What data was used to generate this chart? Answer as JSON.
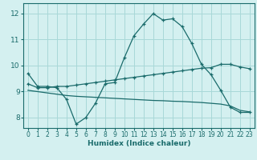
{
  "xlabel": "Humidex (Indice chaleur)",
  "xlim": [
    -0.5,
    23.5
  ],
  "ylim": [
    7.6,
    12.4
  ],
  "xticks": [
    0,
    1,
    2,
    3,
    4,
    5,
    6,
    7,
    8,
    9,
    10,
    11,
    12,
    13,
    14,
    15,
    16,
    17,
    18,
    19,
    20,
    21,
    22,
    23
  ],
  "yticks": [
    8,
    9,
    10,
    11,
    12
  ],
  "bg_color": "#d4f0f0",
  "grid_color": "#a8d8d8",
  "line_color": "#1a6b6b",
  "line1_x": [
    0,
    1,
    2,
    3,
    4,
    5,
    6,
    7,
    8,
    9,
    10,
    11,
    12,
    13,
    14,
    15,
    16,
    17,
    18,
    19,
    20,
    21,
    22,
    23
  ],
  "line1_y": [
    9.7,
    9.2,
    9.2,
    9.15,
    8.7,
    7.75,
    8.0,
    8.55,
    9.3,
    9.35,
    10.3,
    11.15,
    11.6,
    12.0,
    11.75,
    11.8,
    11.5,
    10.85,
    10.05,
    9.65,
    9.05,
    8.4,
    8.2,
    8.2
  ],
  "line2_x": [
    0,
    1,
    2,
    3,
    4,
    5,
    6,
    7,
    8,
    9,
    10,
    11,
    12,
    13,
    14,
    15,
    16,
    17,
    18,
    19,
    20,
    21,
    22,
    23
  ],
  "line2_y": [
    9.3,
    9.15,
    9.15,
    9.2,
    9.2,
    9.25,
    9.3,
    9.35,
    9.4,
    9.45,
    9.5,
    9.55,
    9.6,
    9.65,
    9.7,
    9.75,
    9.8,
    9.85,
    9.9,
    9.92,
    10.05,
    10.05,
    9.95,
    9.88
  ],
  "line3_x": [
    0,
    1,
    2,
    3,
    4,
    5,
    6,
    7,
    8,
    9,
    10,
    11,
    12,
    13,
    14,
    15,
    16,
    17,
    18,
    19,
    20,
    21,
    22,
    23
  ],
  "line3_y": [
    9.05,
    9.0,
    8.95,
    8.9,
    8.85,
    8.82,
    8.8,
    8.78,
    8.76,
    8.74,
    8.72,
    8.7,
    8.68,
    8.66,
    8.65,
    8.63,
    8.62,
    8.6,
    8.58,
    8.55,
    8.52,
    8.45,
    8.28,
    8.22
  ]
}
